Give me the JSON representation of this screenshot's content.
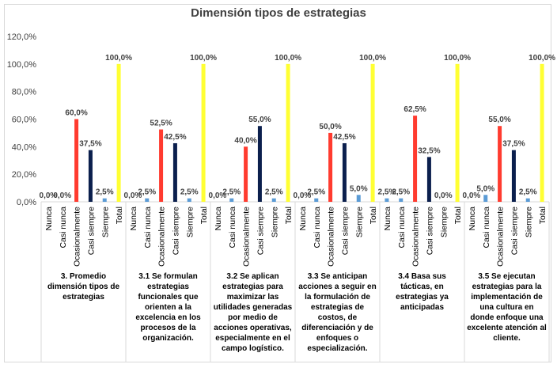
{
  "chart_data": {
    "type": "bar",
    "title": "Dimensión tipos de estrategias",
    "ylim": [
      0,
      120
    ],
    "yticks": [
      "0,0%",
      "20,0%",
      "40,0%",
      "60,0%",
      "80,0%",
      "100,0%",
      "120,0%"
    ],
    "grid": false,
    "bar_labels": [
      "Nunca",
      "Casi nunca",
      "Ocasionalmente",
      "Casi siempre",
      "Siempre",
      "Total"
    ],
    "bar_colors": [
      "#5b9bd5",
      "#5b9bd5",
      "#ff3b2f",
      "#0b1f4d",
      "#5b9bd5",
      "#ffff33"
    ],
    "groups": [
      {
        "name": "3. Promedio dimensión tipos de estrategias",
        "values": [
          0.0,
          0.0,
          60.0,
          37.5,
          2.5,
          100.0
        ],
        "labels": [
          "0,0%",
          "0,0%",
          "60,0%",
          "37,5%",
          "2,5%",
          "100,0%"
        ]
      },
      {
        "name": "3.1 Se formulan estrategias funcionales que orienten a la excelencia en los procesos de la organización.",
        "values": [
          0.0,
          2.5,
          52.5,
          42.5,
          2.5,
          100.0
        ],
        "labels": [
          "0,0%",
          "2,5%",
          "52,5%",
          "42,5%",
          "2,5%",
          "100,0%"
        ]
      },
      {
        "name": "3.2 Se aplican estrategias para maximizar las utilidades generadas por medio de acciones operativas, especialmente en el campo logístico.",
        "values": [
          0.0,
          2.5,
          40.0,
          55.0,
          2.5,
          100.0
        ],
        "labels": [
          "0,0%",
          "2,5%",
          "40,0%",
          "55,0%",
          "2,5%",
          "100,0%"
        ]
      },
      {
        "name": "3.3 Se anticipan acciones a seguir en la formulación de estrategias de costos, de diferenciación y de enfoques o especialización.",
        "values": [
          0.0,
          2.5,
          50.0,
          42.5,
          5.0,
          100.0
        ],
        "labels": [
          "0,0%",
          "2,5%",
          "50,0%",
          "42,5%",
          "5,0%",
          "100,0%"
        ]
      },
      {
        "name": "3.4 Basa sus tácticas, en estrategias ya anticipadas",
        "values": [
          2.5,
          2.5,
          62.5,
          32.5,
          0.0,
          100.0
        ],
        "labels": [
          "2,5%",
          "2,5%",
          "62,5%",
          "32,5%",
          "0,0%",
          "100,0%"
        ]
      },
      {
        "name": "3.5 Se ejecutan estrategias para la implementación de una cultura en donde enfoque una excelente atención al cliente.",
        "values": [
          0.0,
          5.0,
          55.0,
          37.5,
          2.5,
          100.0
        ],
        "labels": [
          "0,0%",
          "5,0%",
          "55,0%",
          "37,5%",
          "2,5%",
          "100,0%"
        ]
      }
    ]
  }
}
